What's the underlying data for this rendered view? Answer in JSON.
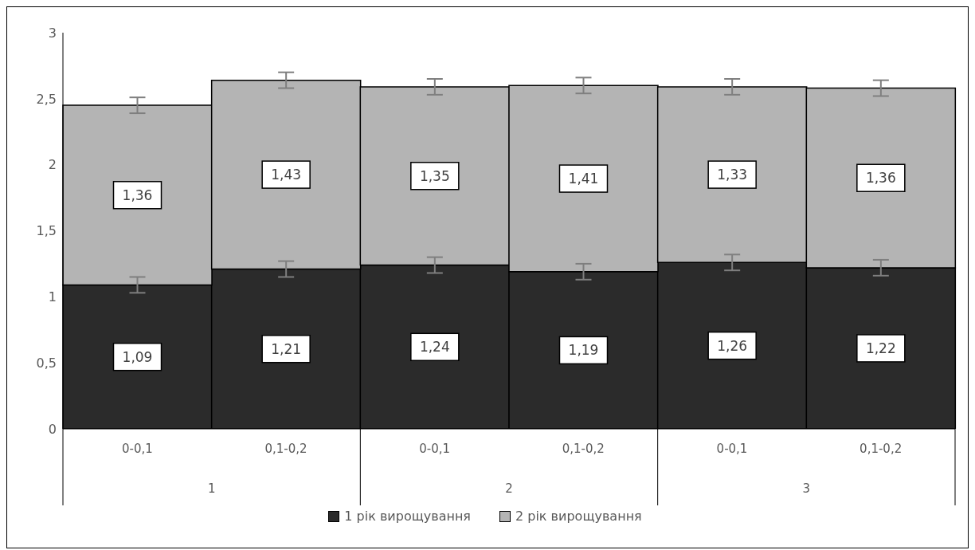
{
  "chart_data": {
    "type": "bar",
    "stacked": true,
    "categories": [
      "0-0,1",
      "0,1-0,2",
      "0-0,1",
      "0,1-0,2",
      "0-0,1",
      "0,1-0,2"
    ],
    "series": [
      {
        "name": "1 рік вирощування",
        "color": "#2b2b2b",
        "values": [
          1.09,
          1.21,
          1.24,
          1.19,
          1.26,
          1.22
        ],
        "value_labels": [
          "1,09",
          "1,21",
          "1,24",
          "1,19",
          "1,26",
          "1,22"
        ],
        "errors": [
          0.06,
          0.06,
          0.06,
          0.06,
          0.06,
          0.06
        ]
      },
      {
        "name": "2 рік вирощування",
        "color": "#b4b4b4",
        "values": [
          1.36,
          1.43,
          1.35,
          1.41,
          1.33,
          1.36
        ],
        "value_labels": [
          "1,36",
          "1,43",
          "1,35",
          "1,41",
          "1,33",
          "1,36"
        ],
        "errors": [
          0.06,
          0.06,
          0.06,
          0.06,
          0.06,
          0.06
        ]
      }
    ],
    "annotations": [
      "1",
      "2",
      "3"
    ],
    "ylim": [
      0,
      3
    ],
    "yticks": [
      0,
      {
        "value": 0.5,
        "label": "0,5"
      },
      1,
      {
        "value": 1.5,
        "label": "1,5"
      },
      2,
      {
        "value": 2.5,
        "label": "2,5"
      },
      3
    ],
    "grid": false,
    "legend": "bottom"
  }
}
